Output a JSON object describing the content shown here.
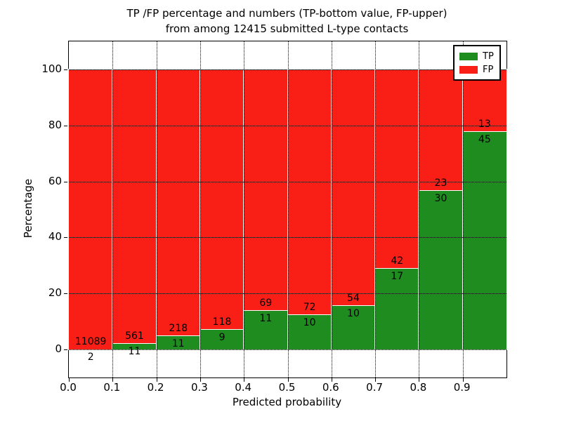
{
  "figure": {
    "title_line1": "TP /FP percentage and numbers (TP-bottom value, FP-upper)",
    "title_line2": "from among 12415 submitted L-type contacts"
  },
  "axes": {
    "xlabel": "Predicted probability",
    "ylabel": "Percentage",
    "xtick_labels": [
      "0.0",
      "0.1",
      "0.2",
      "0.3",
      "0.4",
      "0.5",
      "0.6",
      "0.7",
      "0.8",
      "0.9"
    ],
    "ytick_labels": [
      "0",
      "20",
      "40",
      "60",
      "80",
      "100"
    ]
  },
  "legend": {
    "position": "upper right",
    "items": [
      {
        "label": "TP",
        "color": "#1e8c1e"
      },
      {
        "label": "FP",
        "color": "#fa1f16"
      }
    ]
  },
  "chart_data": {
    "type": "bar",
    "stacked": true,
    "title": "TP /FP percentage and numbers (TP-bottom value, FP-upper) from among 12415 submitted L-type contacts",
    "xlabel": "Predicted probability",
    "ylabel": "Percentage",
    "total_submitted_contacts": 12415,
    "bins_start": [
      0.0,
      0.1,
      0.2,
      0.3,
      0.4,
      0.5,
      0.6,
      0.7,
      0.8,
      0.9
    ],
    "bin_width": 0.1,
    "series": [
      {
        "name": "TP",
        "color": "#1e8c1e",
        "counts": [
          2,
          11,
          11,
          9,
          11,
          10,
          10,
          17,
          30,
          45
        ]
      },
      {
        "name": "FP",
        "color": "#fa1f16",
        "counts": [
          11089,
          561,
          218,
          118,
          69,
          72,
          54,
          42,
          23,
          13
        ]
      }
    ],
    "bar_value_rule": "green TP segment height = TP/(TP+FP)*100, red FP fills to 100%; FP count printed above segment boundary, TP count below",
    "xlim": [
      0.0,
      1.0
    ],
    "ylim": [
      -10,
      110
    ],
    "xticks": [
      0.0,
      0.1,
      0.2,
      0.3,
      0.4,
      0.5,
      0.6,
      0.7,
      0.8,
      0.9
    ],
    "yticks": [
      0,
      20,
      40,
      60,
      80,
      100
    ],
    "grid": "dotted both axes",
    "legend_position": "upper right"
  }
}
